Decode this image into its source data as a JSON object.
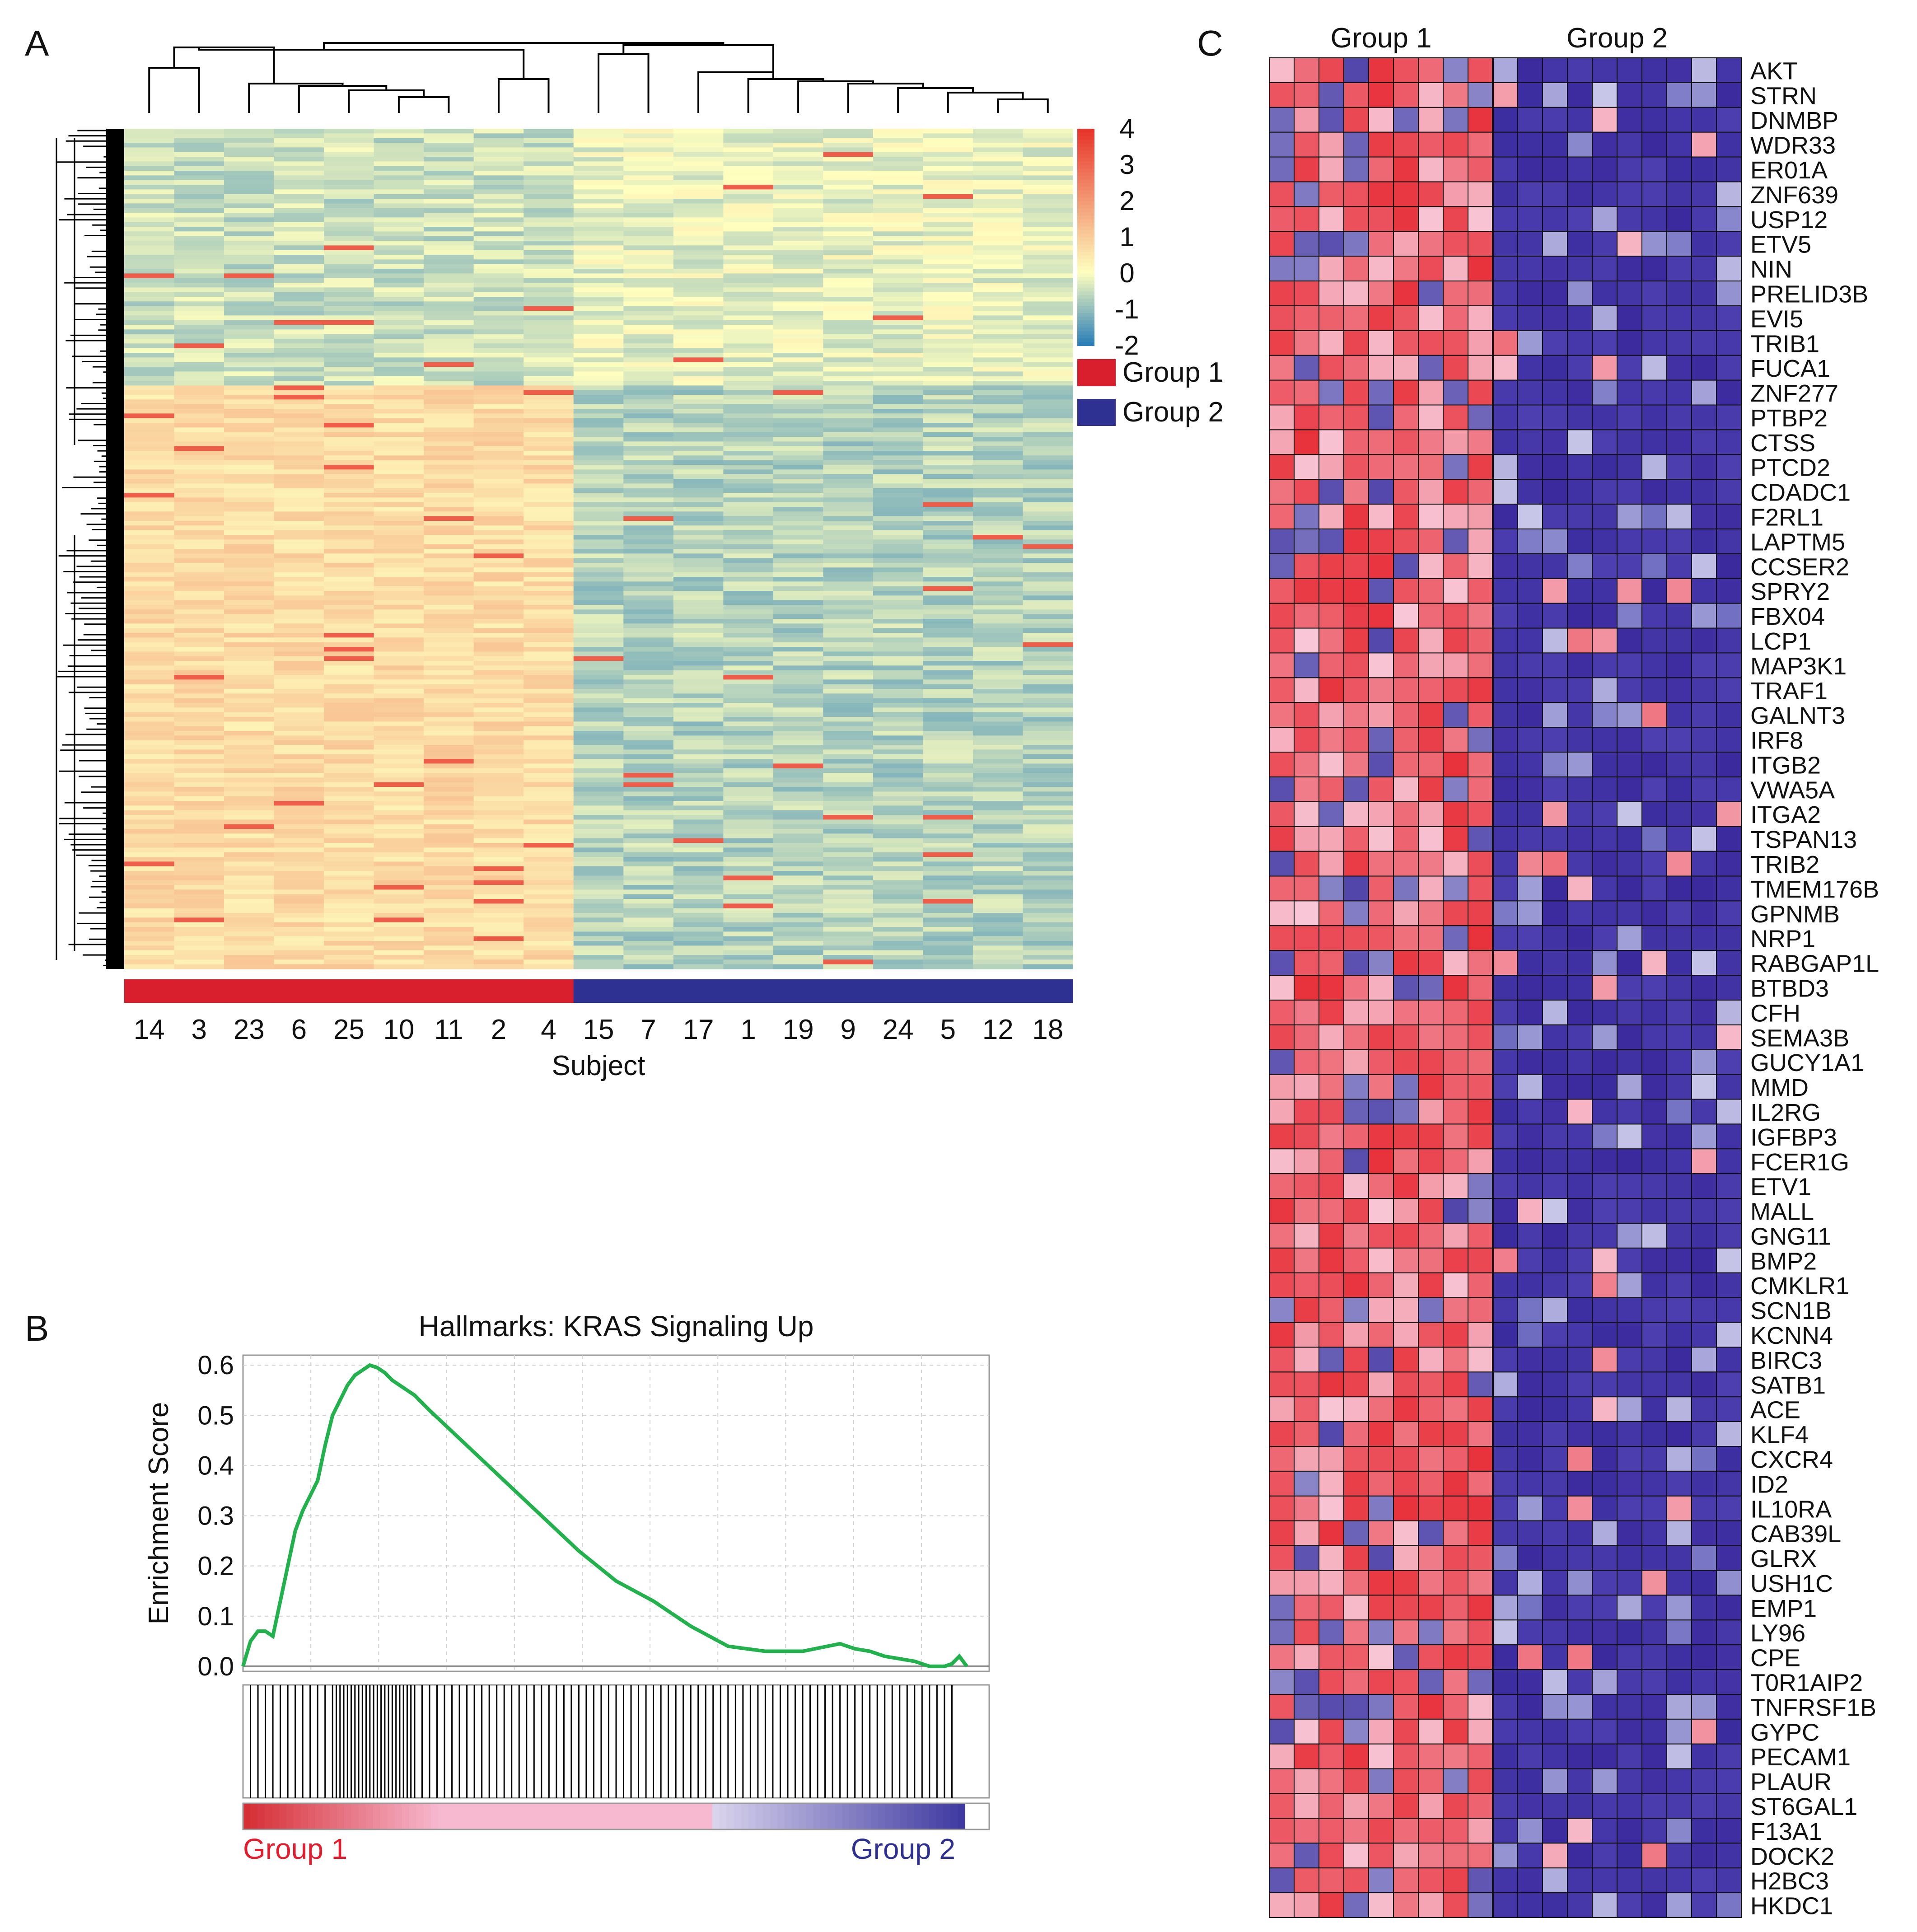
{
  "panels": {
    "a": "A",
    "b": "B",
    "c": "C"
  },
  "chart_data": [
    {
      "type": "heatmap",
      "panel": "A",
      "xlabel": "Subject",
      "x_order": [
        "14",
        "3",
        "23",
        "6",
        "25",
        "10",
        "11",
        "2",
        "4",
        "15",
        "7",
        "17",
        "1",
        "19",
        "9",
        "24",
        "5",
        "12",
        "18"
      ],
      "group_assignment": [
        "Group 1",
        "Group 1",
        "Group 1",
        "Group 1",
        "Group 1",
        "Group 1",
        "Group 1",
        "Group 1",
        "Group 1",
        "Group 2",
        "Group 2",
        "Group 2",
        "Group 2",
        "Group 2",
        "Group 2",
        "Group 2",
        "Group 2",
        "Group 2",
        "Group 2"
      ],
      "color_scale": {
        "ticks": [
          "4",
          "3",
          "2",
          "1",
          "0",
          "-1",
          "-2"
        ],
        "min": -2,
        "max": 4
      },
      "legend": [
        {
          "label": "Group 1",
          "color": "#d91f2e"
        },
        {
          "label": "Group 2",
          "color": "#2e3192"
        }
      ],
      "colors": {
        "low": "#2c7fb8",
        "mid": "#ffffbf",
        "high": "#e8352b"
      }
    },
    {
      "type": "line",
      "panel": "B",
      "title": "Hallmarks: KRAS Signaling Up",
      "ylabel": "Enrichment Score",
      "yticks": [
        "0.0",
        "0.1",
        "0.2",
        "0.3",
        "0.4",
        "0.5",
        "0.6"
      ],
      "ylim": [
        -0.01,
        0.62
      ],
      "xlim": [
        0,
        100
      ],
      "series": [
        {
          "name": "Running enrichment score",
          "color": "#22b14c",
          "x": [
            0,
            1,
            2,
            3,
            4,
            5,
            6,
            7,
            8,
            9,
            10,
            11,
            12,
            13,
            14,
            15,
            16,
            17,
            18,
            19,
            20,
            21,
            22,
            23,
            24,
            25,
            30,
            35,
            40,
            45,
            50,
            55,
            60,
            65,
            70,
            75,
            80,
            82,
            84,
            86,
            88,
            90,
            92,
            94,
            95,
            96,
            97
          ],
          "y": [
            0.0,
            0.05,
            0.07,
            0.07,
            0.06,
            0.13,
            0.2,
            0.27,
            0.31,
            0.34,
            0.37,
            0.44,
            0.5,
            0.53,
            0.56,
            0.58,
            0.59,
            0.6,
            0.595,
            0.585,
            0.57,
            0.56,
            0.55,
            0.54,
            0.525,
            0.51,
            0.44,
            0.37,
            0.3,
            0.23,
            0.17,
            0.13,
            0.08,
            0.04,
            0.03,
            0.03,
            0.045,
            0.035,
            0.03,
            0.02,
            0.015,
            0.01,
            0.0,
            0.0,
            0.005,
            0.02,
            0.0
          ]
        }
      ],
      "hits_positions": [
        1,
        2,
        3,
        4,
        5,
        6,
        7,
        8,
        9,
        10,
        11,
        12,
        12.5,
        13,
        13.5,
        14,
        14.5,
        15,
        15.5,
        16,
        16.5,
        17,
        17.5,
        18,
        18.5,
        19,
        19.5,
        20,
        20.5,
        21,
        21.5,
        22,
        22.5,
        23,
        24,
        25,
        26,
        27,
        28,
        29,
        30,
        31,
        32,
        33,
        34,
        35,
        36,
        37,
        38,
        39,
        40,
        41,
        42,
        43,
        44,
        45,
        46,
        47,
        48,
        49,
        50,
        51,
        52,
        53,
        54,
        55,
        56,
        57,
        58,
        59,
        60,
        61,
        62,
        63,
        64,
        65,
        66,
        67,
        68,
        69,
        70,
        71,
        72,
        73,
        74,
        75,
        76,
        77,
        78,
        79,
        80,
        81,
        82,
        83,
        84,
        85,
        86,
        87,
        88,
        89,
        90,
        91,
        92,
        93,
        94,
        95
      ],
      "ranking_labels": {
        "left": "Group 1",
        "right": "Group 2"
      }
    },
    {
      "type": "heatmap",
      "panel": "C",
      "column_groups": [
        {
          "label": "Group 1",
          "n": 9
        },
        {
          "label": "Group 2",
          "n": 10
        }
      ],
      "genes": [
        "AKT",
        "STRN",
        "DNMBP",
        "WDR33",
        "ER01A",
        "ZNF639",
        "USP12",
        "ETV5",
        "NIN",
        "PRELID3B",
        "EVI5",
        "TRIB1",
        "FUCA1",
        "ZNF277",
        "PTBP2",
        "CTSS",
        "PTCD2",
        "CDADC1",
        "F2RL1",
        "LAPTM5",
        "CCSER2",
        "SPRY2",
        "FBX04",
        "LCP1",
        "MAP3K1",
        "TRAF1",
        "GALNT3",
        "IRF8",
        "ITGB2",
        "VWA5A",
        "ITGA2",
        "TSPAN13",
        "TRIB2",
        "TMEM176B",
        "GPNMB",
        "NRP1",
        "RABGAP1L",
        "BTBD3",
        "CFH",
        "SEMA3B",
        "GUCY1A1",
        "MMD",
        "IL2RG",
        "IGFBP3",
        "FCER1G",
        "ETV1",
        "MALL",
        "GNG11",
        "BMP2",
        "CMKLR1",
        "SCN1B",
        "KCNN4",
        "BIRC3",
        "SATB1",
        "ACE",
        "KLF4",
        "CXCR4",
        "ID2",
        "IL10RA",
        "CAB39L",
        "GLRX",
        "USH1C",
        "EMP1",
        "LY96",
        "CPE",
        "T0R1AIP2",
        "TNFRSF1B",
        "GYPC",
        "PECAM1",
        "PLAUR",
        "ST6GAL1",
        "F13A1",
        "DOCK2",
        "H2BC3",
        "HKDC1"
      ],
      "colors": {
        "high": "#e8323c",
        "mid": "#f8c6d6",
        "low": "#3a2a9e"
      }
    }
  ]
}
